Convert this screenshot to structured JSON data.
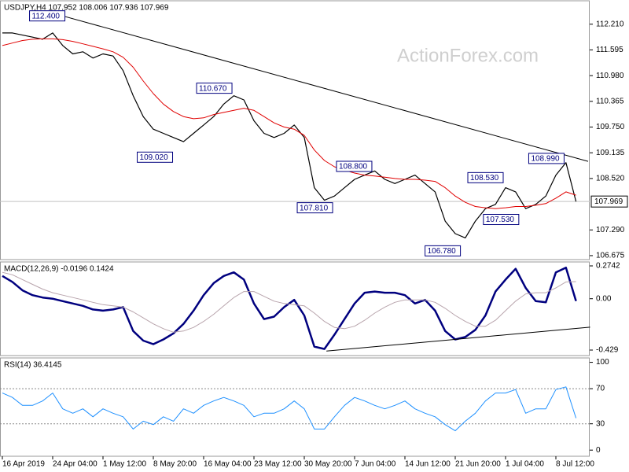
{
  "chart_data": [
    {
      "type": "line",
      "title": "USDJPY,H4  107.952 108.006 107.936 107.969",
      "watermark": "ActionForex.com",
      "ylim": [
        106.58,
        112.77
      ],
      "yticks": [
        {
          "value": 112.21,
          "label": "112.210"
        },
        111.595,
        {
          "value": 110.98,
          "label": "110.980"
        },
        110.365,
        {
          "value": 109.75,
          "label": "109.750"
        },
        109.135,
        {
          "value": 108.52,
          "label": "108.520"
        },
        {
          "value": 107.29,
          "label": "107.290"
        },
        106.675
      ],
      "current_price": 107.969,
      "series": [
        {
          "color": "#000000",
          "width": 1.2,
          "values": [
            112.0,
            112.0,
            111.95,
            111.9,
            111.85,
            112.0,
            111.7,
            111.5,
            111.55,
            111.4,
            111.5,
            111.45,
            111.1,
            110.5,
            110.0,
            109.7,
            109.6,
            109.5,
            109.4,
            109.6,
            109.8,
            110.0,
            110.3,
            110.5,
            110.4,
            109.9,
            109.6,
            109.5,
            109.6,
            109.8,
            109.5,
            108.3,
            108.0,
            108.1,
            108.3,
            108.5,
            108.6,
            108.7,
            108.5,
            108.4,
            108.5,
            108.6,
            108.4,
            108.2,
            107.5,
            107.2,
            107.1,
            107.5,
            107.8,
            107.9,
            108.3,
            108.2,
            107.8,
            107.9,
            108.1,
            108.6,
            108.9,
            107.969
          ]
        },
        {
          "color": "#e00000",
          "width": 1,
          "values": [
            111.7,
            111.76,
            111.82,
            111.85,
            111.86,
            111.86,
            111.84,
            111.8,
            111.74,
            111.68,
            111.62,
            111.55,
            111.42,
            111.18,
            110.85,
            110.55,
            110.3,
            110.12,
            110.0,
            109.95,
            109.97,
            110.05,
            110.1,
            110.15,
            110.2,
            110.15,
            110.0,
            109.85,
            109.75,
            109.7,
            109.55,
            109.2,
            108.95,
            108.8,
            108.72,
            108.65,
            108.6,
            108.58,
            108.55,
            108.52,
            108.5,
            108.5,
            108.48,
            108.45,
            108.3,
            108.1,
            107.95,
            107.85,
            107.82,
            107.8,
            107.82,
            107.85,
            107.85,
            107.88,
            107.92,
            108.05,
            108.2,
            108.12
          ]
        }
      ],
      "trendline": {
        "x": [
          5.6,
          58.2
        ],
        "values": [
          112.435,
          108.93
        ]
      },
      "annotations": [
        {
          "x": 2.7,
          "value": 112.4,
          "label": "112.400"
        },
        {
          "x": 19.3,
          "value": 110.67,
          "label": "110.670"
        },
        {
          "x": 13.4,
          "value": 109.02,
          "label": "109.020"
        },
        {
          "x": 29.3,
          "value": 107.81,
          "label": "107.810"
        },
        {
          "x": 33.2,
          "value": 108.8,
          "label": "108.800"
        },
        {
          "x": 46.25,
          "value": 108.53,
          "label": "108.530"
        },
        {
          "x": 47.8,
          "value": 107.53,
          "label": "107.530"
        },
        {
          "x": 42,
          "value": 106.78,
          "label": "106.780"
        },
        {
          "x": 52.3,
          "value": 108.99,
          "label": "108.990"
        }
      ]
    },
    {
      "type": "line",
      "title": "MACD(12,26,9) -0.0196 0.1424",
      "ylim": [
        -0.475,
        0.307
      ],
      "yticks": [
        0.2742,
        {
          "value": 0,
          "label": "0.00"
        },
        -0.429
      ],
      "series": [
        {
          "color": "#00007f",
          "width": 2.5,
          "values": [
            0.19,
            0.14,
            0.07,
            0.03,
            0.01,
            0.0,
            -0.02,
            -0.04,
            -0.06,
            -0.09,
            -0.1,
            -0.09,
            -0.07,
            -0.27,
            -0.35,
            -0.38,
            -0.34,
            -0.29,
            -0.21,
            -0.1,
            0.03,
            0.13,
            0.19,
            0.22,
            0.16,
            -0.04,
            -0.17,
            -0.15,
            -0.07,
            -0.01,
            -0.14,
            -0.4,
            -0.42,
            -0.3,
            -0.17,
            -0.04,
            0.05,
            0.06,
            0.05,
            0.05,
            0.03,
            -0.04,
            -0.01,
            -0.1,
            -0.27,
            -0.34,
            -0.32,
            -0.26,
            -0.14,
            0.06,
            0.16,
            0.25,
            0.09,
            -0.02,
            -0.03,
            0.22,
            0.26,
            -0.0196
          ]
        },
        {
          "color": "#b8a4ac",
          "width": 1,
          "values": [
            0.22,
            0.2,
            0.16,
            0.12,
            0.08,
            0.05,
            0.03,
            0.01,
            -0.01,
            -0.03,
            -0.05,
            -0.06,
            -0.07,
            -0.11,
            -0.16,
            -0.21,
            -0.25,
            -0.28,
            -0.27,
            -0.24,
            -0.19,
            -0.13,
            -0.06,
            0.01,
            0.06,
            0.06,
            0.02,
            -0.02,
            -0.04,
            -0.05,
            -0.06,
            -0.12,
            -0.19,
            -0.24,
            -0.25,
            -0.23,
            -0.18,
            -0.12,
            -0.07,
            -0.03,
            -0.01,
            -0.01,
            -0.01,
            -0.03,
            -0.08,
            -0.14,
            -0.19,
            -0.23,
            -0.23,
            -0.18,
            -0.1,
            -0.02,
            0.04,
            0.05,
            0.05,
            0.09,
            0.14,
            0.1424
          ]
        }
      ],
      "trendline": {
        "x": [
          32.2,
          58.4
        ],
        "values": [
          -0.437,
          -0.238
        ]
      }
    },
    {
      "type": "line",
      "title": "RSI(14) 36.4145",
      "ylim": [
        -7,
        105
      ],
      "yticks": [
        100,
        70,
        30,
        0
      ],
      "levels": [
        70,
        30
      ],
      "categories": [
        "16 Apr 2019",
        null,
        null,
        null,
        null,
        "24 Apr 04:00",
        null,
        null,
        null,
        null,
        "1 May 12:00",
        null,
        null,
        null,
        null,
        "8 May 20:00",
        null,
        null,
        null,
        null,
        "16 May 04:00",
        null,
        null,
        null,
        null,
        "23 May 12:00",
        null,
        null,
        null,
        null,
        "30 May 20:00",
        null,
        null,
        null,
        null,
        "7 Jun 04:00",
        null,
        null,
        null,
        null,
        "14 Jun 12:00",
        null,
        null,
        null,
        null,
        "21 Jun 20:00",
        null,
        null,
        null,
        null,
        "1 Jul 04:00",
        null,
        null,
        null,
        null,
        "8 Jul 12:00",
        null,
        null
      ],
      "series": [
        {
          "color": "#1e90ff",
          "width": 1,
          "values": [
            65,
            60,
            51,
            51,
            56,
            65,
            47,
            42,
            47,
            38,
            47,
            42,
            38,
            24,
            33,
            29,
            38,
            33,
            47,
            42,
            51,
            56,
            60,
            56,
            51,
            38,
            42,
            42,
            47,
            56,
            47,
            24,
            24,
            38,
            51,
            60,
            56,
            51,
            47,
            51,
            56,
            47,
            42,
            38,
            29,
            22,
            33,
            42,
            56,
            65,
            65,
            69,
            42,
            47,
            47,
            69,
            72,
            36.4145
          ]
        }
      ]
    }
  ]
}
